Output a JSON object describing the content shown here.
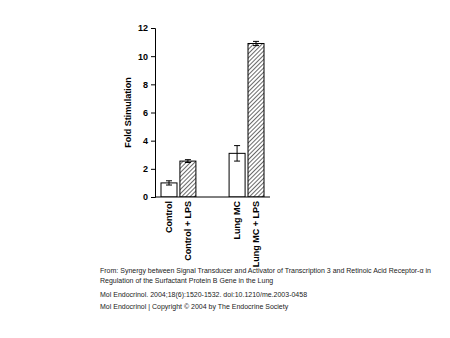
{
  "chart_data": {
    "type": "bar",
    "y_label": "Fold Stimulation",
    "categories": [
      "Control",
      "Control + LPS",
      "Lung MC",
      "Lung MC + LPS"
    ],
    "values": [
      1.0,
      2.55,
      3.1,
      10.9
    ],
    "errors": [
      0.15,
      0.1,
      0.55,
      0.15
    ],
    "colors": [
      "#ffffff",
      "#444444",
      "#ffffff",
      "#444444"
    ],
    "ylim": [
      0,
      12
    ],
    "yticks": [
      0,
      2,
      4,
      6,
      8,
      10,
      12
    ],
    "grid": false,
    "annotations": [
      "From: Synergy between Signal Transducer and Activator of Transcription 3 and Retinoic Acid Receptor-α in",
      "Regulation of the Surfactant Protein B Gene in the Lung",
      "Mol Endocrinol. 2004;18(6):1520-1532. doi:10.1210/me.2003-0458",
      "Mol Endocrinol | Copyright © 2004 by The Endocrine Society"
    ]
  }
}
